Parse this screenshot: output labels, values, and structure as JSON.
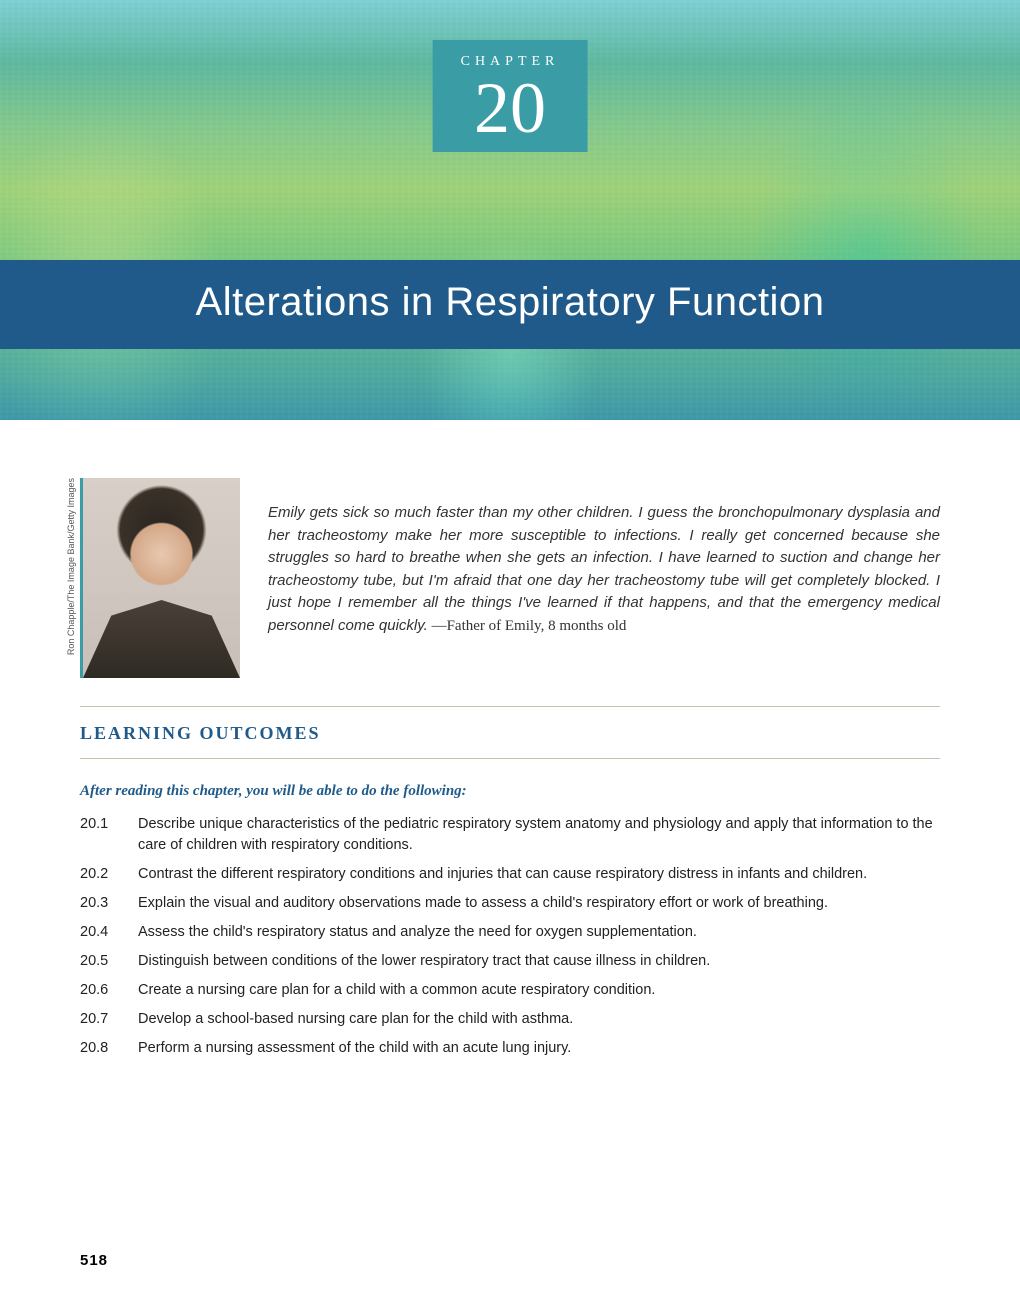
{
  "hero": {
    "chapter_label": "CHAPTER",
    "chapter_number": "20",
    "title": "Alterations in Respiratory Function",
    "badge_bg": "#3a9ca5",
    "title_bar_bg": "#1f5a8a"
  },
  "quote": {
    "photo_credit": "Ron Chapple/The Image Bank/Getty Images",
    "text": "Emily gets sick so much faster than my other children. I guess the bronchopulmonary dysplasia and her tracheostomy make her more susceptible to infections. I really get concerned because she struggles so hard to breathe when she gets an infection. I have learned to suction and change her tracheostomy tube, but I'm afraid that one day her tracheostomy tube will get completely blocked. I just hope I remember all the things I've learned if that happens, and that the emergency medical personnel come quickly.",
    "attribution": " —Father of Emily, 8 months old"
  },
  "learning": {
    "heading": "LEARNING OUTCOMES",
    "intro": "After reading this chapter, you will be able to do the following:",
    "items": [
      {
        "num": "20.1",
        "text": "Describe unique characteristics of the pediatric respiratory system anatomy and physiology and apply that information to the care of children with respiratory conditions."
      },
      {
        "num": "20.2",
        "text": "Contrast the different respiratory conditions and injuries that can cause respiratory distress in infants and children."
      },
      {
        "num": "20.3",
        "text": "Explain the visual and auditory observations made to assess a child's respiratory effort or work of breathing."
      },
      {
        "num": "20.4",
        "text": "Assess the child's respiratory status and analyze the need for oxygen supplementation."
      },
      {
        "num": "20.5",
        "text": "Distinguish between conditions of the lower respiratory tract that cause illness in children."
      },
      {
        "num": "20.6",
        "text": "Create a nursing care plan for a child with a common acute respiratory condition."
      },
      {
        "num": "20.7",
        "text": "Develop a school-based nursing care plan for the child with asthma."
      },
      {
        "num": "20.8",
        "text": "Perform a nursing assessment of the child with an acute lung injury."
      }
    ]
  },
  "page_number": "518"
}
